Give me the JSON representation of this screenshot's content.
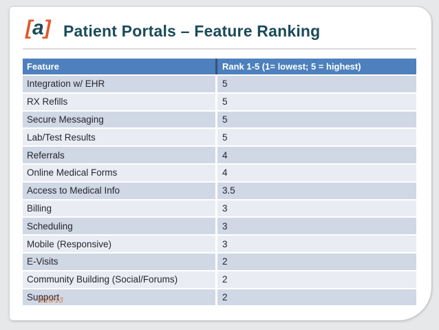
{
  "logo": {
    "bracket_left": "[",
    "letter": "a",
    "bracket_right": "]"
  },
  "title": {
    "text": "Patient Portals – Feature Ranking"
  },
  "table": {
    "header": {
      "feature": "Feature",
      "rank": "Rank 1-5 (1= lowest; 5 = highest)"
    },
    "rows": [
      {
        "feature": "Integration w/ EHR",
        "rank": "5"
      },
      {
        "feature": "RX Refills",
        "rank": "5"
      },
      {
        "feature": "Secure Messaging",
        "rank": "5"
      },
      {
        "feature": "Lab/Test Results",
        "rank": "5"
      },
      {
        "feature": "Referrals",
        "rank": "4"
      },
      {
        "feature": "Online Medical Forms",
        "rank": "4"
      },
      {
        "feature": "Access to Medical Info",
        "rank": "3.5"
      },
      {
        "feature": "Billing",
        "rank": "3"
      },
      {
        "feature": "Scheduling",
        "rank": "3"
      },
      {
        "feature": "Mobile (Responsive)",
        "rank": "3"
      },
      {
        "feature": "E-Visits",
        "rank": "2"
      },
      {
        "feature": "Community Building (Social/Forums)",
        "rank": "2"
      },
      {
        "feature": "Support",
        "rank": "2"
      }
    ]
  },
  "footer": {
    "date": "4/16/13"
  },
  "colors": {
    "canvas_bg": "#e7e8ea",
    "slide_bg": "#ffffff",
    "header_bg": "#4d80bc",
    "header_divider": "#35537a",
    "row_dark": "#d0d7e5",
    "row_light": "#e9ecf3",
    "title_teal": "#1a4b59",
    "brand_orange": "#e05a2b",
    "date_orange": "#de7f3f",
    "text_dark": "#26262e",
    "rule_gray": "#d8dadc"
  }
}
